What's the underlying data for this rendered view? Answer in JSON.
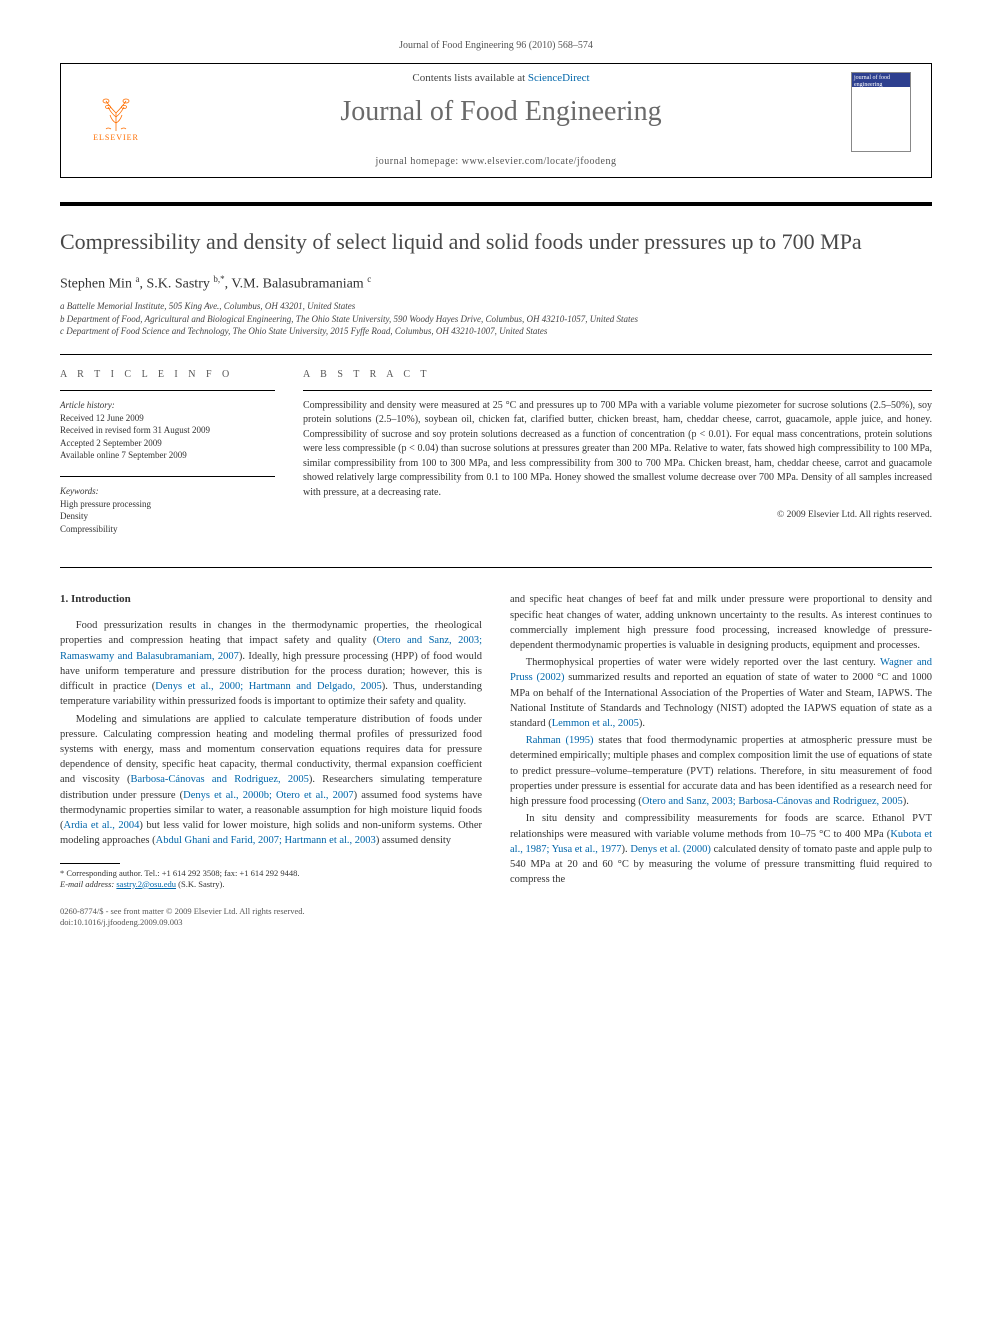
{
  "running_head": "Journal of Food Engineering 96 (2010) 568–574",
  "masthead": {
    "contents_line_prefix": "Contents lists available at ",
    "contents_link": "ScienceDirect",
    "journal_name": "Journal of Food Engineering",
    "homepage_prefix": "journal homepage: ",
    "homepage_url": "www.elsevier.com/locate/jfoodeng",
    "publisher": "ELSEVIER",
    "cover_label": "journal of food engineering"
  },
  "paper": {
    "title": "Compressibility and density of select liquid and solid foods under pressures up to 700 MPa",
    "authors_html": "Stephen Min <sup>a</sup>, S.K. Sastry <sup>b,*</sup>, V.M. Balasubramaniam <sup>c</sup>",
    "affiliations": [
      "a Battelle Memorial Institute, 505 King Ave., Columbus, OH 43201, United States",
      "b Department of Food, Agricultural and Biological Engineering, The Ohio State University, 590 Woody Hayes Drive, Columbus, OH 43210-1057, United States",
      "c Department of Food Science and Technology, The Ohio State University, 2015 Fyffe Road, Columbus, OH 43210-1007, United States"
    ]
  },
  "article_info": {
    "head": "A R T I C L E   I N F O",
    "history_label": "Article history:",
    "history": [
      "Received 12 June 2009",
      "Received in revised form 31 August 2009",
      "Accepted 2 September 2009",
      "Available online 7 September 2009"
    ],
    "keywords_label": "Keywords:",
    "keywords": [
      "High pressure processing",
      "Density",
      "Compressibility"
    ]
  },
  "abstract": {
    "head": "A B S T R A C T",
    "text": "Compressibility and density were measured at 25 °C and pressures up to 700 MPa with a variable volume piezometer for sucrose solutions (2.5–50%), soy protein solutions (2.5–10%), soybean oil, chicken fat, clarified butter, chicken breast, ham, cheddar cheese, carrot, guacamole, apple juice, and honey. Compressibility of sucrose and soy protein solutions decreased as a function of concentration (p < 0.01). For equal mass concentrations, protein solutions were less compressible (p < 0.04) than sucrose solutions at pressures greater than 200 MPa. Relative to water, fats showed high compressibility to 100 MPa, similar compressibility from 100 to 300 MPa, and less compressibility from 300 to 700 MPa. Chicken breast, ham, cheddar cheese, carrot and guacamole showed relatively large compressibility from 0.1 to 100 MPa. Honey showed the smallest volume decrease over 700 MPa. Density of all samples increased with pressure, at a decreasing rate.",
    "copyright": "© 2009 Elsevier Ltd. All rights reserved."
  },
  "body": {
    "section_title": "1. Introduction",
    "paragraphs": [
      "Food pressurization results in changes in the thermodynamic properties, the rheological properties and compression heating that impact safety and quality (<span class='cite'>Otero and Sanz, 2003; Ramaswamy and Balasubramaniam, 2007</span>). Ideally, high pressure processing (HPP) of food would have uniform temperature and pressure distribution for the process duration; however, this is difficult in practice (<span class='cite'>Denys et al., 2000; Hartmann and Delgado, 2005</span>). Thus, understanding temperature variability within pressurized foods is important to optimize their safety and quality.",
      "Modeling and simulations are applied to calculate temperature distribution of foods under pressure. Calculating compression heating and modeling thermal profiles of pressurized food systems with energy, mass and momentum conservation equations requires data for pressure dependence of density, specific heat capacity, thermal conductivity, thermal expansion coefficient and viscosity (<span class='cite'>Barbosa-Cánovas and Rodriguez, 2005</span>). Researchers simulating temperature distribution under pressure (<span class='cite'>Denys et al., 2000b; Otero et al., 2007</span>) assumed food systems have thermodynamic properties similar to water, a reasonable assumption for high moisture liquid foods (<span class='cite'>Ardia et al., 2004</span>) but less valid for lower moisture, high solids and non-uniform systems. Other modeling approaches (<span class='cite'>Abdul Ghani and Farid, 2007; Hartmann et al., 2003</span>) assumed density",
      "and specific heat changes of beef fat and milk under pressure were proportional to density and specific heat changes of water, adding unknown uncertainty to the results. As interest continues to commercially implement high pressure food processing, increased knowledge of pressure-dependent thermodynamic properties is valuable in designing products, equipment and processes.",
      "Thermophysical properties of water were widely reported over the last century. <span class='cite'>Wagner and Pruss (2002)</span> summarized results and reported an equation of state of water to 2000 °C and 1000 MPa on behalf of the International Association of the Properties of Water and Steam, IAPWS. The National Institute of Standards and Technology (NIST) adopted the IAPWS equation of state as a standard (<span class='cite'>Lemmon et al., 2005</span>).",
      "<span class='cite'>Rahman (1995)</span> states that food thermodynamic properties at atmospheric pressure must be determined empirically; multiple phases and complex composition limit the use of equations of state to predict pressure–volume–temperature (PVT) relations. Therefore, in situ measurement of food properties under pressure is essential for accurate data and has been identified as a research need for high pressure food processing (<span class='cite'>Otero and Sanz, 2003; Barbosa-Cánovas and Rodriguez, 2005</span>).",
      "In situ density and compressibility measurements for foods are scarce. Ethanol PVT relationships were measured with variable volume methods from 10–75 °C to 400 MPa (<span class='cite'>Kubota et al., 1987; Yusa et al., 1977</span>). <span class='cite'>Denys et al. (2000)</span> calculated density of tomato paste and apple pulp to 540 MPa at 20 and 60 °C by measuring the volume of pressure transmitting fluid required to compress the"
    ]
  },
  "footnote": {
    "corr": "* Corresponding author. Tel.: +1 614 292 3508; fax: +1 614 292 9448.",
    "email_label": "E-mail address:",
    "email": "sastry.2@osu.edu",
    "email_who": "(S.K. Sastry)."
  },
  "footer": {
    "line1": "0260-8774/$ - see front matter © 2009 Elsevier Ltd. All rights reserved.",
    "line2": "doi:10.1016/j.jfoodeng.2009.09.003"
  },
  "colors": {
    "link": "#0066aa",
    "elsevier_orange": "#ff6e00",
    "heading_gray": "#6a6a6a"
  }
}
